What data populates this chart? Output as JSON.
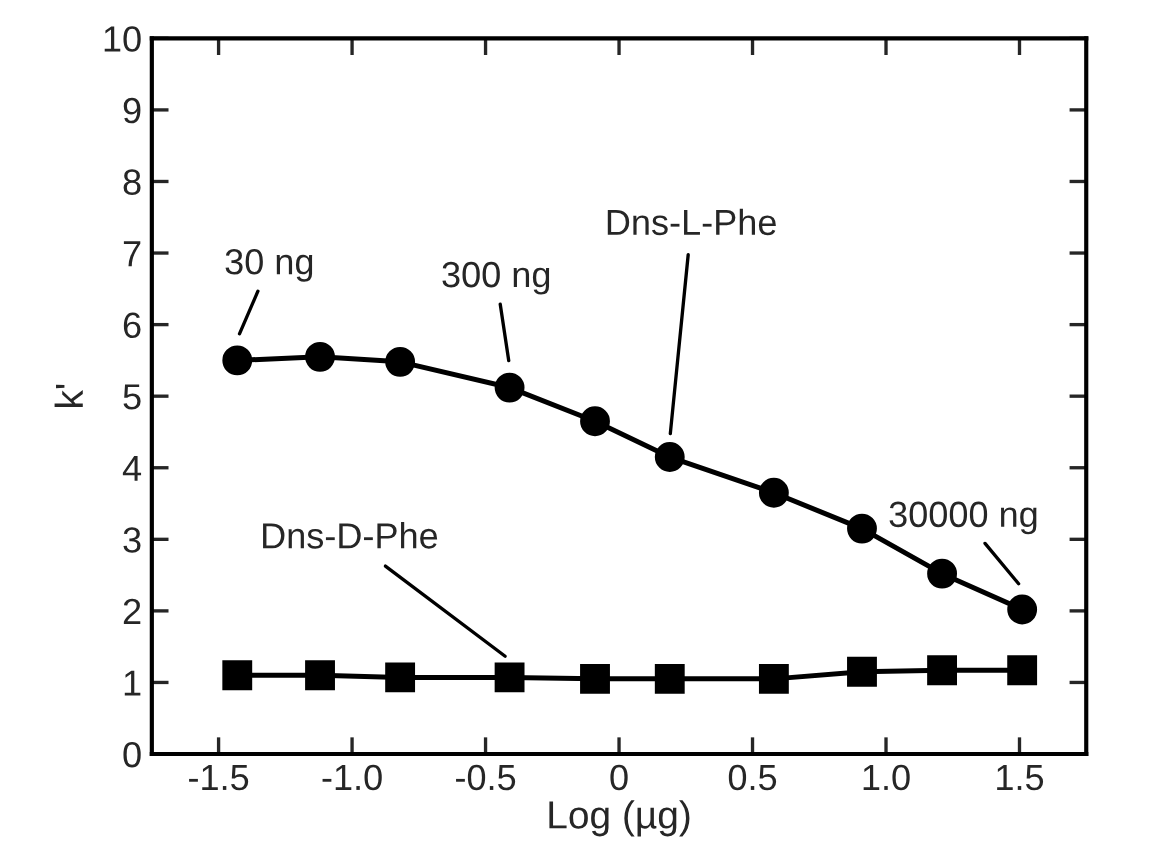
{
  "chart_data": {
    "type": "line",
    "xlabel": "Log (µg)",
    "ylabel": "k'",
    "x": [
      -1.43,
      -1.12,
      -0.82,
      -0.41,
      -0.09,
      0.19,
      0.58,
      0.91,
      1.21,
      1.51
    ],
    "series": [
      {
        "name": "Dns-L-Phe",
        "color": "#000000",
        "marker": "circle",
        "values": [
          5.5,
          5.55,
          5.48,
          5.12,
          4.65,
          4.15,
          3.65,
          3.15,
          2.52,
          2.02
        ]
      },
      {
        "name": "Dns-D-Phe",
        "color": "#000000",
        "marker": "square",
        "values": [
          1.1,
          1.1,
          1.07,
          1.07,
          1.05,
          1.05,
          1.05,
          1.15,
          1.17,
          1.17
        ]
      }
    ],
    "annotations": [
      {
        "text": "30 ng",
        "x": -1.43,
        "y": 5.5
      },
      {
        "text": "300 ng",
        "x": -0.41,
        "y": 5.12
      },
      {
        "text": "30000 ng",
        "x": 1.51,
        "y": 2.02
      }
    ],
    "xlim": [
      -1.75,
      1.75
    ],
    "xticks": [
      {
        "value": -1.5,
        "label": "-1.5"
      },
      {
        "value": -1.0,
        "label": "-1.0"
      },
      {
        "value": -0.5,
        "label": "-0.5"
      },
      0,
      0.5,
      {
        "value": 1.0,
        "label": "1.0"
      },
      1.5
    ],
    "ylim": [
      0,
      10
    ],
    "yticks": [
      0,
      1,
      2,
      3,
      4,
      5,
      6,
      7,
      8,
      9,
      10
    ],
    "grid": false,
    "legend": false,
    "line_style": "solid"
  }
}
